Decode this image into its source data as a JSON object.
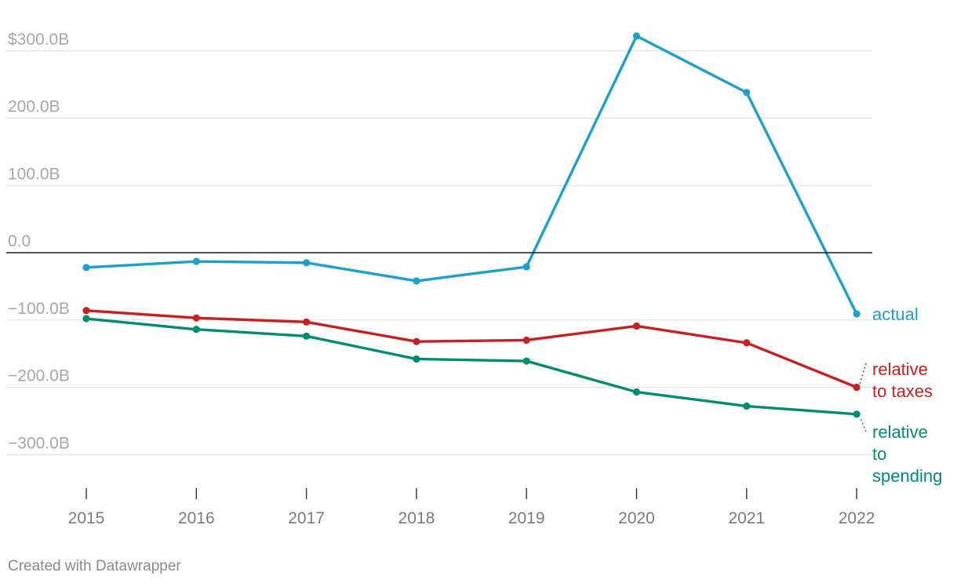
{
  "chart_data": {
    "type": "line",
    "title": "",
    "xlabel": "",
    "ylabel": "",
    "categories": [
      "2015",
      "2016",
      "2017",
      "2018",
      "2019",
      "2020",
      "2021",
      "2022"
    ],
    "ylim": [
      -350,
      320
    ],
    "yticks": [
      300,
      200,
      100,
      0,
      -100,
      -200,
      -300
    ],
    "ytick_labels": [
      "$300.0B",
      "200.0B",
      "100.0B",
      "0.0",
      "−100.0B",
      "−200.0B",
      "−300.0B"
    ],
    "grid": true,
    "series": [
      {
        "name": "actual",
        "label_lines": [
          "actual"
        ],
        "color": "#1fa0c9",
        "values": [
          -22,
          -13,
          -15,
          -42,
          -21,
          322,
          238,
          -91
        ]
      },
      {
        "name": "relative to taxes",
        "label_lines": [
          "relative",
          "to taxes"
        ],
        "color": "#c7201f",
        "values": [
          -86,
          -97,
          -103,
          -132,
          -130,
          -109,
          -134,
          -200
        ]
      },
      {
        "name": "relative to spending",
        "label_lines": [
          "relative",
          "to",
          "spending"
        ],
        "color": "#008d6f",
        "values": [
          -98,
          -114,
          -124,
          -158,
          -161,
          -207,
          -228,
          -240
        ]
      }
    ]
  },
  "footer": {
    "credit": "Created with Datawrapper"
  }
}
